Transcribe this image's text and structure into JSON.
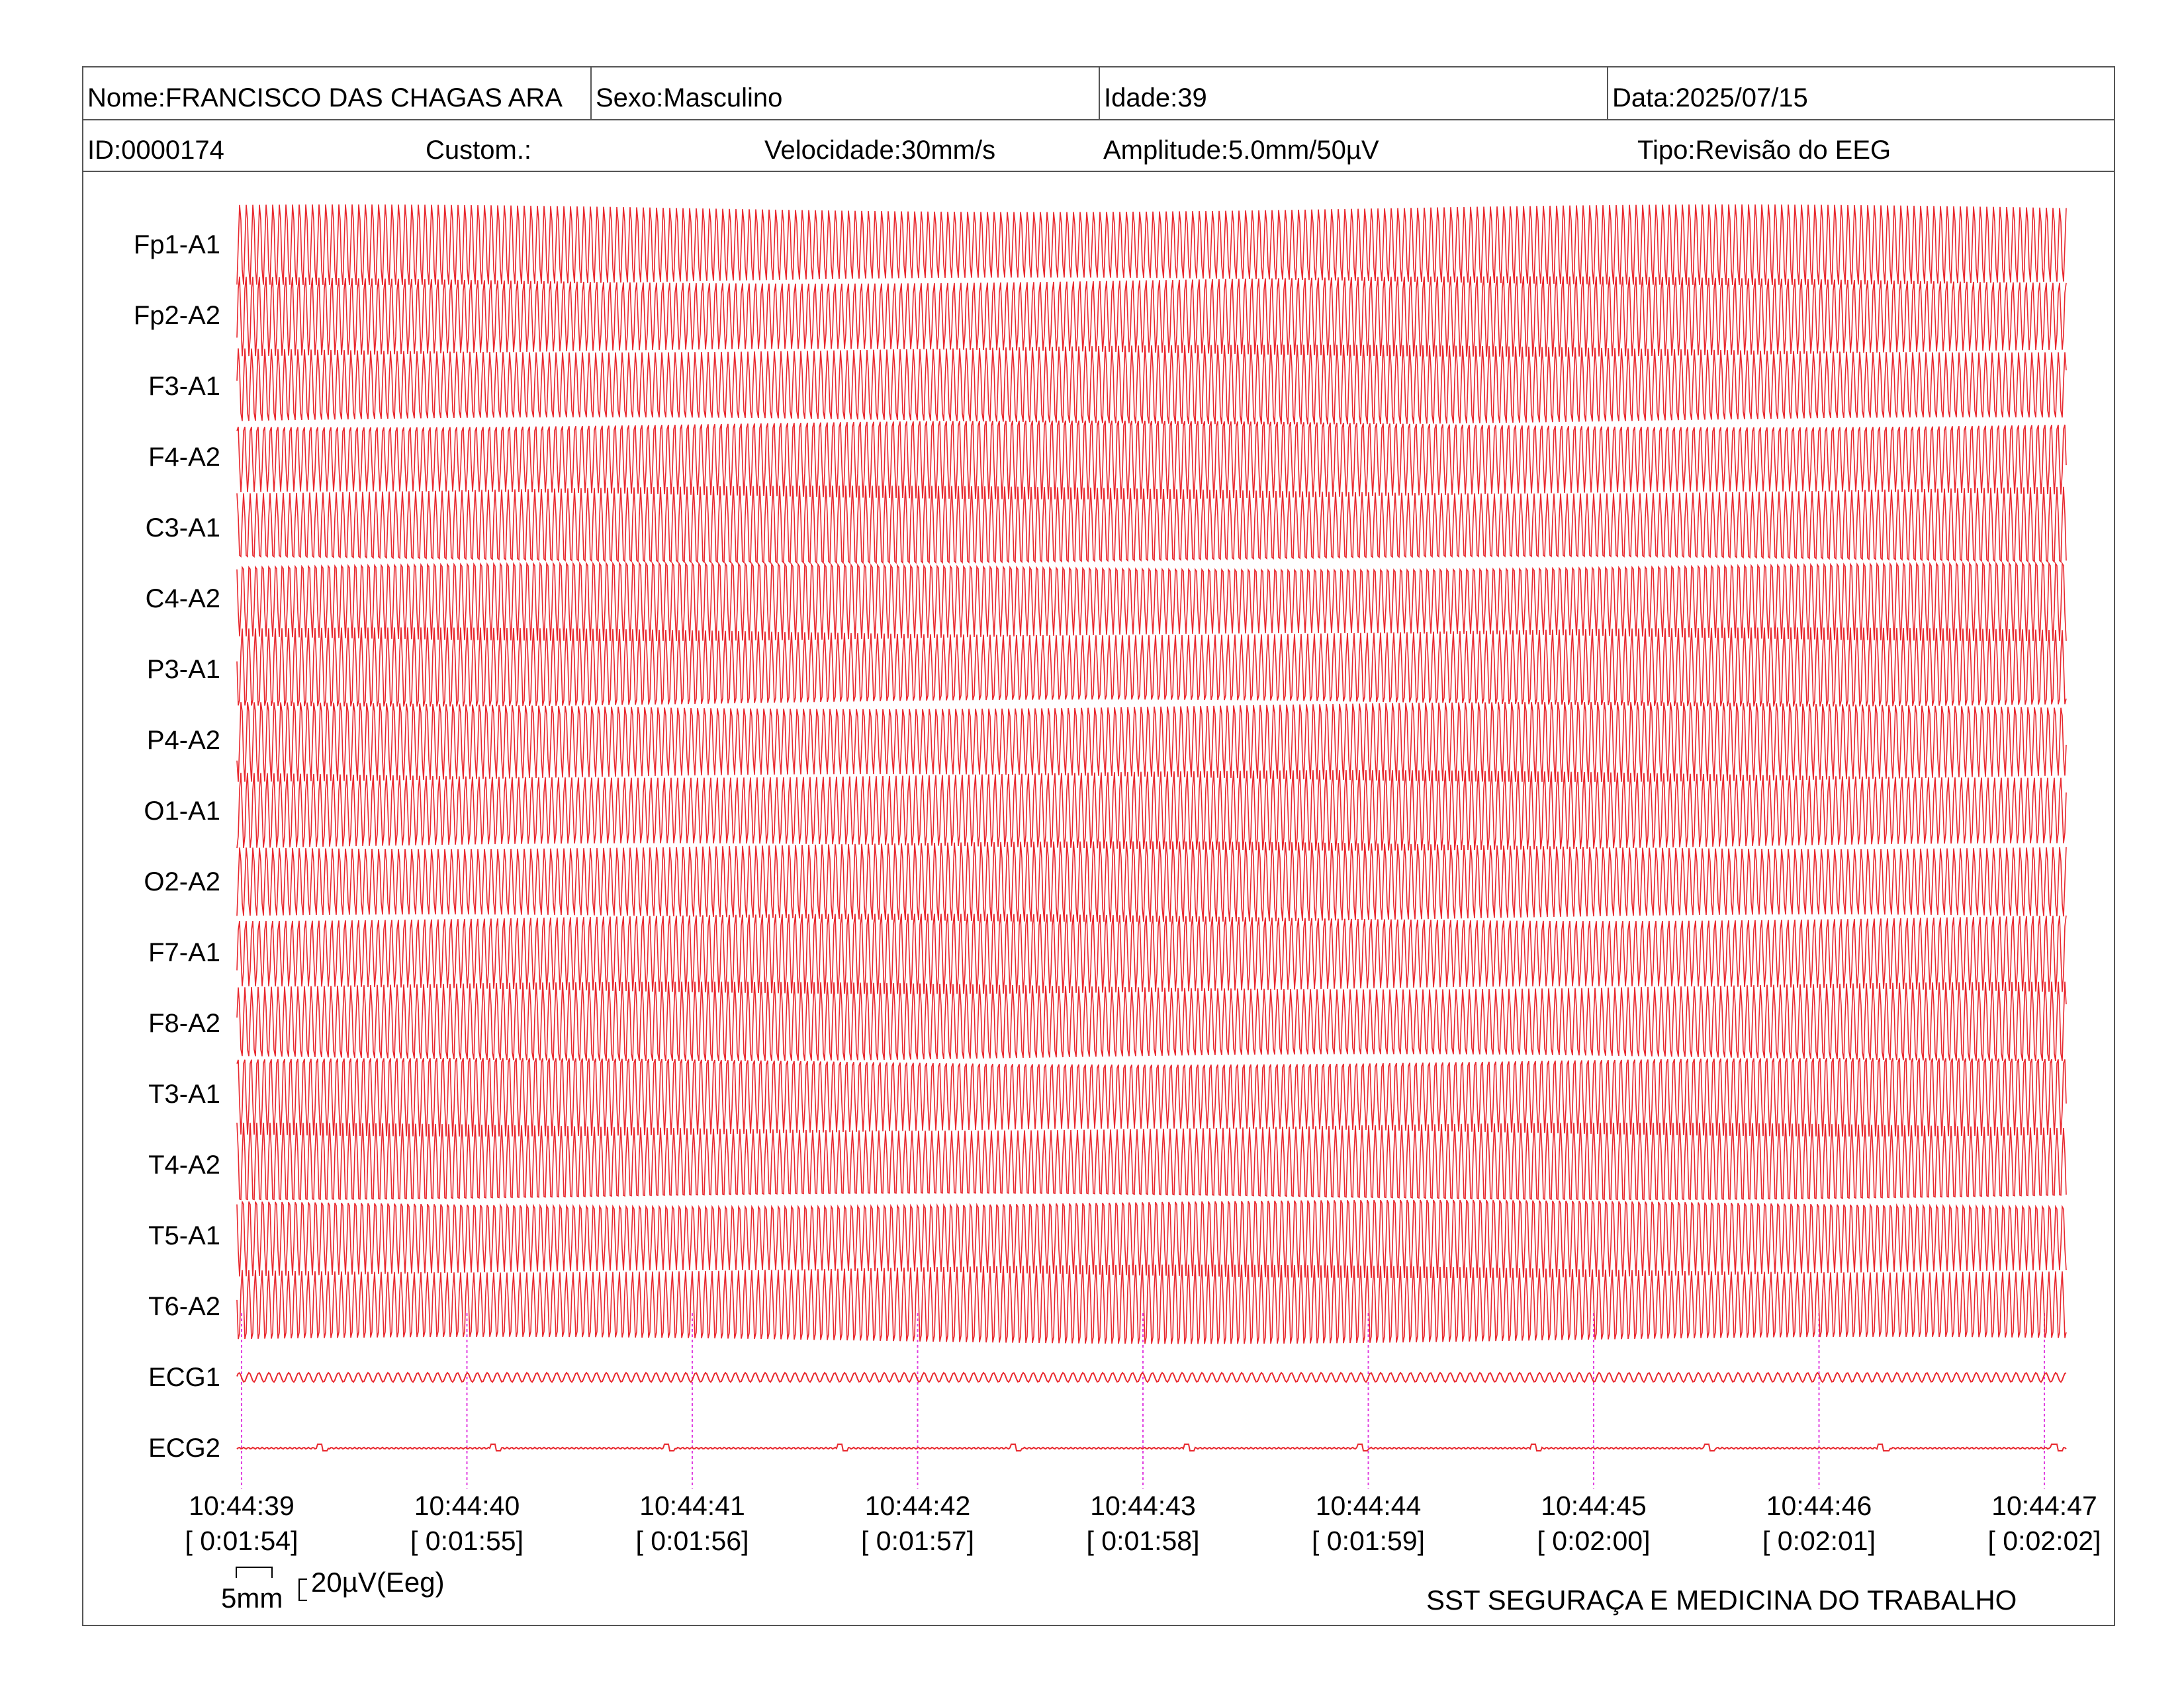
{
  "header": {
    "nome": "Nome:FRANCISCO DAS CHAGAS ARA",
    "sexo": "Sexo:Masculino",
    "idade": "Idade:39",
    "data": "Data:2025/07/15",
    "id": "ID:0000174",
    "custom": "Custom.:",
    "velocidade": "Velocidade:30mm/s",
    "amplitude": "Amplitude:5.0mm/50µV",
    "tipo": "Tipo:Revisão do EEG"
  },
  "colors": {
    "trace": "#e8282e",
    "marker": "#e040e0",
    "border": "#555555"
  },
  "chart_data": {
    "type": "line",
    "channels": [
      "Fp1-A1",
      "Fp2-A2",
      "F3-A1",
      "F4-A2",
      "C3-A1",
      "C4-A2",
      "P3-A1",
      "P4-A2",
      "O1-A1",
      "O2-A2",
      "F7-A1",
      "F8-A2",
      "T3-A1",
      "T4-A2",
      "T5-A1",
      "T6-A2",
      "ECG1",
      "ECG2"
    ],
    "time_ticks": [
      {
        "clock": "10:44:39",
        "elapsed": "[ 0:01:54]"
      },
      {
        "clock": "10:44:40",
        "elapsed": "[ 0:01:55]"
      },
      {
        "clock": "10:44:41",
        "elapsed": "[ 0:01:56]"
      },
      {
        "clock": "10:44:42",
        "elapsed": "[ 0:01:57]"
      },
      {
        "clock": "10:44:43",
        "elapsed": "[ 0:01:58]"
      },
      {
        "clock": "10:44:44",
        "elapsed": "[ 0:01:59]"
      },
      {
        "clock": "10:44:45",
        "elapsed": "[ 0:02:00]"
      },
      {
        "clock": "10:44:46",
        "elapsed": "[ 0:02:01]"
      },
      {
        "clock": "10:44:47",
        "elapsed": "[ 0:02:02]"
      }
    ],
    "x_range_seconds": [
      0,
      8.1
    ],
    "eeg_waveform": "dense high-amplitude oscillation (~34 cycles per second display)",
    "ecg1_waveform": "low-amplitude regular oscillation",
    "ecg2_waveform": "near-flat baseline with small spikes"
  },
  "scale": {
    "time_label": "5mm",
    "amp_label": "20µV(Eeg)"
  },
  "footer": {
    "org": "SST SEGURAÇA E MEDICINA DO TRABALHO"
  }
}
